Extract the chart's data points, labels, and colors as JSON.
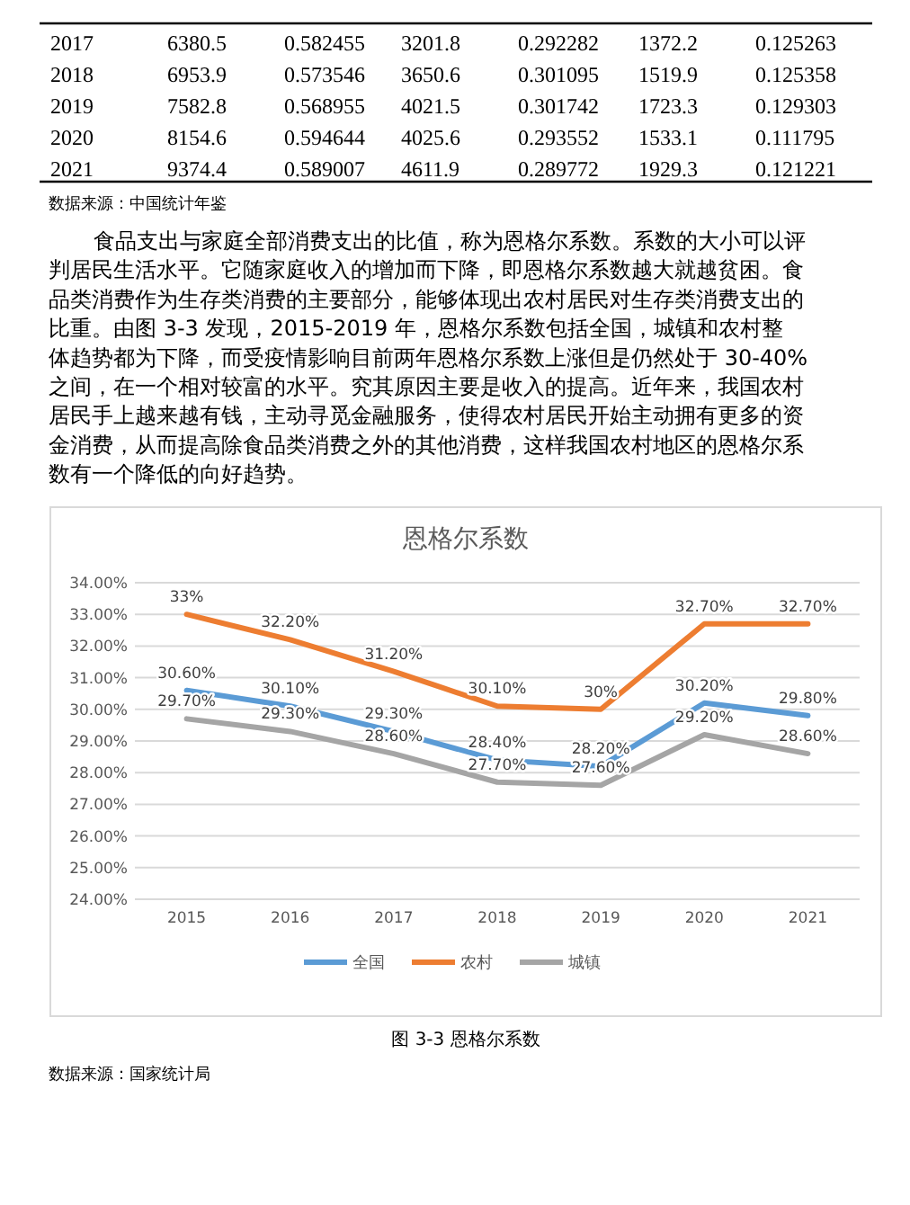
{
  "chart_data": {
    "type": "line",
    "title": "恩格尔系数",
    "categories": [
      "2015",
      "2016",
      "2017",
      "2018",
      "2019",
      "2020",
      "2021"
    ],
    "series": [
      {
        "name": "全国",
        "color": "#5b9bd5",
        "values": [
          30.6,
          30.1,
          29.3,
          28.4,
          28.2,
          30.2,
          29.8
        ],
        "value_labels": [
          "30.60%",
          "30.10%",
          "29.30%",
          "28.40%",
          "28.20%",
          "30.20%",
          "29.80%"
        ]
      },
      {
        "name": "农村",
        "color": "#ed7d31",
        "values": [
          33,
          32.2,
          31.2,
          30.1,
          30,
          32.7,
          32.7
        ],
        "value_labels": [
          "33%",
          "32.20%",
          "31.20%",
          "30.10%",
          "30%",
          "32.70%",
          "32.70%"
        ]
      },
      {
        "name": "城镇",
        "color": "#a5a5a5",
        "values": [
          29.7,
          29.3,
          28.6,
          27.7,
          27.6,
          29.2,
          28.6
        ],
        "value_labels": [
          "29.70%",
          "29.30%",
          "28.60%",
          "27.70%",
          "27.60%",
          "29.20%",
          "28.60%"
        ]
      }
    ],
    "ylim": [
      24,
      34
    ],
    "yticks": [
      {
        "value": 24,
        "label": "24.00%"
      },
      {
        "value": 25,
        "label": "25.00%"
      },
      {
        "value": 26,
        "label": "26.00%"
      },
      {
        "value": 27,
        "label": "27.00%"
      },
      {
        "value": 28,
        "label": "28.00%"
      },
      {
        "value": 29,
        "label": "29.00%"
      },
      {
        "value": 30,
        "label": "30.00%"
      },
      {
        "value": 31,
        "label": "31.00%"
      },
      {
        "value": 32,
        "label": "32.00%"
      },
      {
        "value": 33,
        "label": "33.00%"
      },
      {
        "value": 34,
        "label": "34.00%"
      }
    ],
    "grid": "y",
    "legend": "bottom",
    "marker": "none",
    "line_style": "solid",
    "annotations": [
      "2017 6380.5 0.582455 3201.8 0.292282 1372.2 0.125263",
      "2018 6953.9 0.573546 3650.6 0.301095 1519.9 0.125358",
      "2019 7582.8 0.568955 4021.5 0.301742 1723.3 0.129303",
      "2020 8154.6 0.594644 4025.6 0.293552 1533.1 0.111795",
      "2021 9374.4 0.589007 4611.9 0.289772 1929.3 0.121221",
      "数据来源：中国统计年鉴",
      "食品支出与家庭全部消费支出的比值，称为恩格尔系数。系数的大小可以评判居民生活水平。它随家庭收入的增加而下降，即恩格尔系数越大就越贫困。食品类消费作为生存类消费的主要部分，能够体现出农村居民对生存类消费支出的比重。由图 3-3 发现，2015-2019 年，恩格尔系数包括全国，城镇和农村整体趋势都为下降，而受疫情影响目前两年恩格尔系数上涨但是仍然处于 30-40%之间，在一个相对较富的水平。究其原因主要是收入的提高。近年来，我国农村居民手上越来越有钱，主动寻觅金融服务，使得农村居民开始主动拥有更多的资金消费，从而提高除食品类消费之外的其他消费，这样我国农村地区的恩格尔系数有一个降低的向好趋势。",
      "图 3-3 恩格尔系数",
      "数据来源：国家统计局"
    ]
  }
}
